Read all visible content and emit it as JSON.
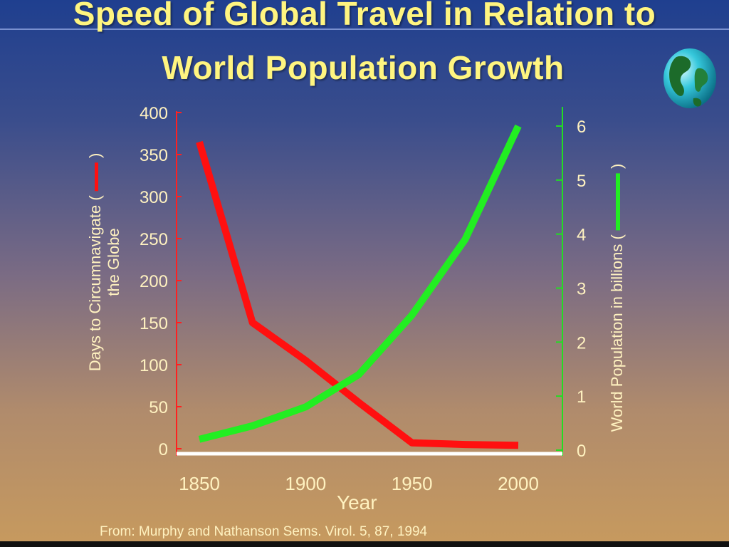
{
  "slide": {
    "title_line1": "Speed of Global Travel in Relation to",
    "title_line2": "World Population Growth",
    "source": "From: Murphy and Nathanson Sems. Virol. 5, 87, 1994",
    "globe_icon": "globe-icon"
  },
  "chart_data": {
    "type": "line",
    "xlabel": "Year",
    "ylabel_left_line1": "Days to Circumnavigate (",
    "ylabel_left_line2": "the Globe",
    "ylabel_left_close": ")",
    "ylabel_right": "World Population in billions (",
    "ylabel_right_close": ")",
    "x_ticks": [
      1850,
      1900,
      1950,
      2000
    ],
    "y_left_ticks": [
      0,
      50,
      100,
      150,
      200,
      250,
      300,
      350,
      400
    ],
    "y_right_ticks": [
      0,
      1,
      2,
      3,
      4,
      5,
      6
    ],
    "xlim": [
      1840,
      2020
    ],
    "ylim_left": [
      0,
      400
    ],
    "ylim_right": [
      0,
      6.3
    ],
    "series": [
      {
        "axis": "left",
        "color": "#ff1010",
        "x": [
          1850,
          1875,
          1900,
          1925,
          1950,
          1975,
          2000
        ],
        "values": [
          365,
          150,
          105,
          55,
          7,
          5,
          4
        ]
      },
      {
        "axis": "right",
        "color": "#22ee22",
        "x": [
          1850,
          1875,
          1900,
          1925,
          1950,
          1975,
          2000
        ],
        "values": [
          0.2,
          0.45,
          0.8,
          1.4,
          2.5,
          3.9,
          6.0
        ]
      }
    ],
    "colors": {
      "left_axis": "#ff2020",
      "right_axis": "#22dd22",
      "baseline": "#ffffff"
    }
  }
}
